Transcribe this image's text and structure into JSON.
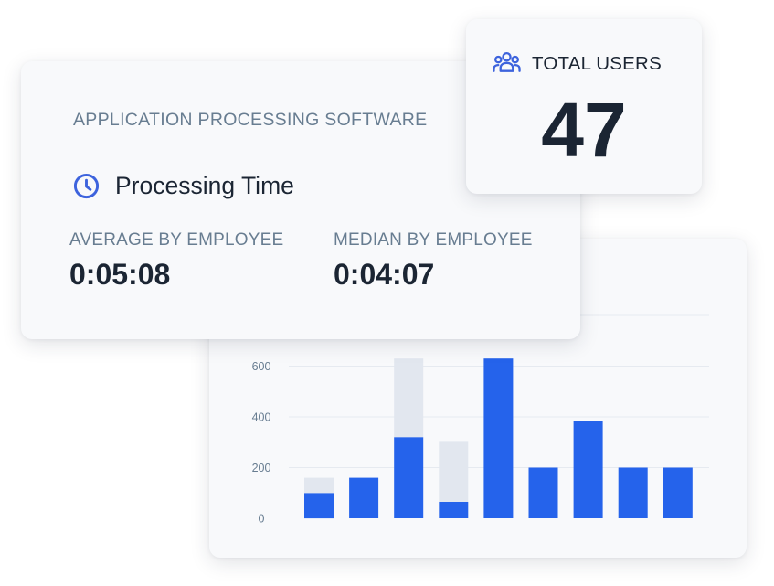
{
  "app": {
    "title": "APPLICATION PROCESSING SOFTWARE"
  },
  "processing_time": {
    "title": "Processing Time",
    "icon": "clock-icon",
    "average_label": "AVERAGE BY EMPLOYEE",
    "average_value": "0:05:08",
    "median_label": "MEDIAN BY EMPLOYEE",
    "median_value": "0:04:07"
  },
  "total_users": {
    "label": "TOTAL USERS",
    "icon": "users-icon",
    "value": "47"
  },
  "colors": {
    "accent": "#2563eb",
    "bar_secondary": "#e2e7ef",
    "text_dark": "#1b2533",
    "text_muted": "#687d91"
  },
  "chart_data": {
    "type": "bar",
    "stacked": true,
    "categories": [
      "",
      "",
      "",
      "",
      "",
      "",
      "",
      "",
      ""
    ],
    "y_ticks": [
      0,
      200,
      400,
      600
    ],
    "ylim": [
      0,
      800
    ],
    "grid": true,
    "series": [
      {
        "color": "#2563eb",
        "values": [
          100,
          160,
          320,
          65,
          630,
          200,
          385,
          200,
          200
        ]
      },
      {
        "color": "#e2e7ef",
        "values": [
          60,
          0,
          310,
          240,
          0,
          0,
          0,
          0,
          0
        ]
      }
    ]
  }
}
